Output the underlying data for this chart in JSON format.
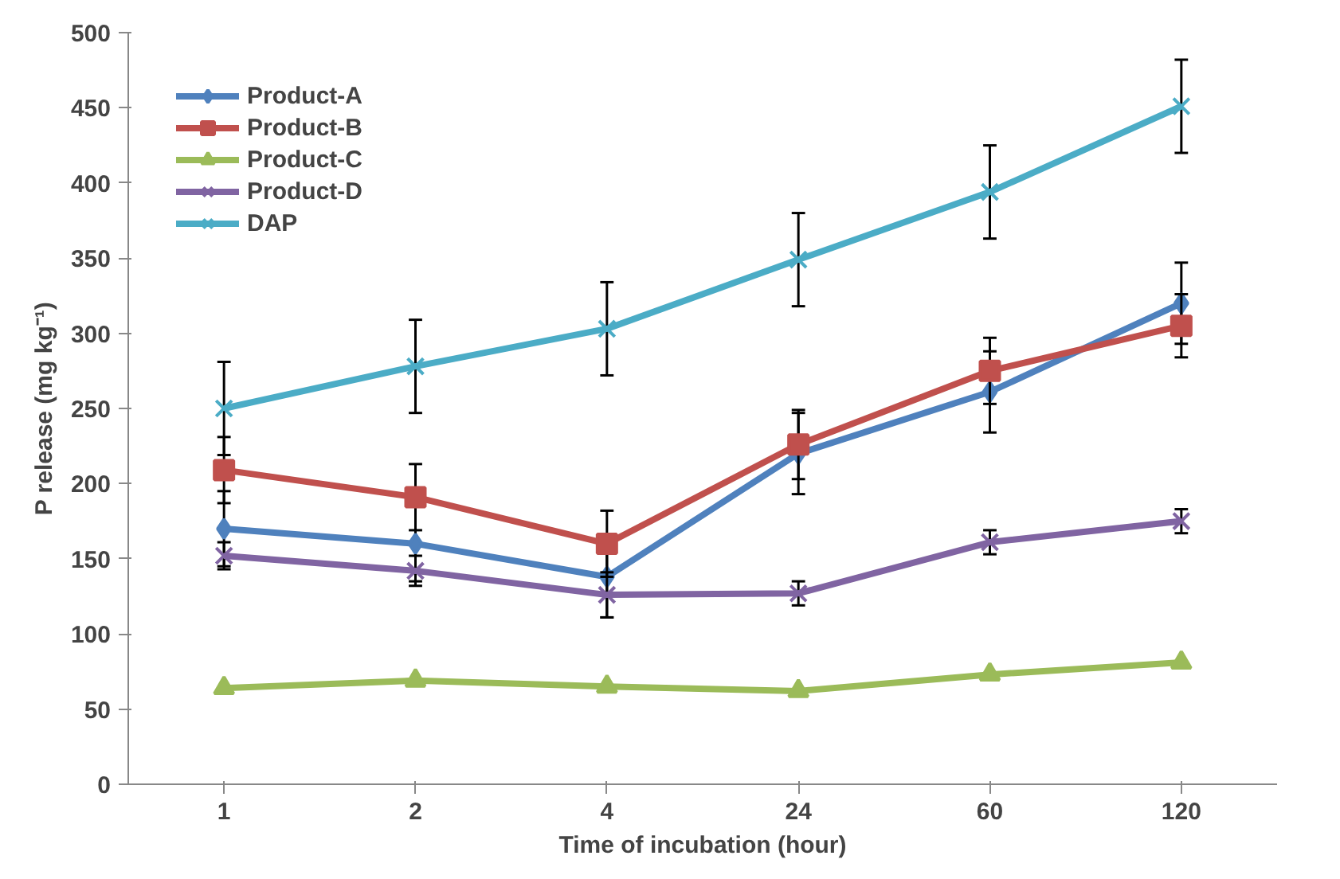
{
  "chart_data": {
    "type": "line",
    "xlabel": "Time of incubation (hour)",
    "ylabel": "P release (mg kg⁻¹)",
    "categories": [
      "1",
      "2",
      "4",
      "24",
      "60",
      "120"
    ],
    "ylim": [
      0,
      500
    ],
    "yticks": [
      0,
      50,
      100,
      150,
      200,
      250,
      300,
      350,
      400,
      450,
      500
    ],
    "grid": false,
    "legend": "top left",
    "series": [
      {
        "name": "Product-A",
        "color": "#4f81bd",
        "marker": "diamond",
        "values": [
          170,
          160,
          138,
          220,
          261,
          320
        ],
        "errors": [
          25,
          25,
          27,
          27,
          27,
          27
        ]
      },
      {
        "name": "Product-B",
        "color": "#c0504d",
        "marker": "square",
        "values": [
          209,
          191,
          160,
          226,
          275,
          305
        ],
        "errors": [
          22,
          22,
          22,
          23,
          22,
          21
        ]
      },
      {
        "name": "Product-C",
        "color": "#9bbb59",
        "marker": "triangle",
        "values": [
          64,
          69,
          65,
          62,
          73,
          81
        ]
      },
      {
        "name": "Product-D",
        "color": "#8064a2",
        "marker": "cross",
        "values": [
          152,
          142,
          126,
          127,
          161,
          175
        ],
        "errors": [
          9,
          10,
          15,
          8,
          8,
          8
        ]
      },
      {
        "name": "DAP",
        "color": "#4bacc6",
        "marker": "cross",
        "values": [
          250,
          278,
          303,
          349,
          394,
          451
        ],
        "errors": [
          31,
          31,
          31,
          31,
          31,
          31
        ]
      }
    ]
  }
}
